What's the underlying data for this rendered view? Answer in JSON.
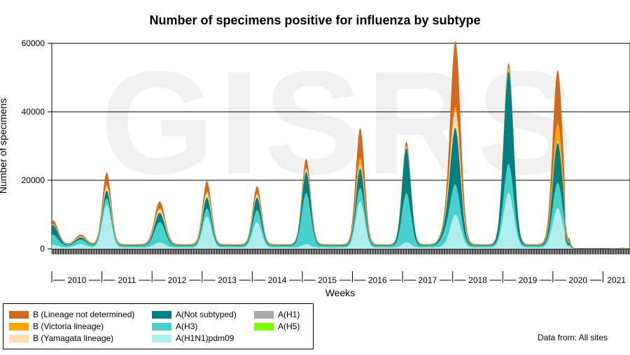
{
  "chart_data": {
    "type": "area",
    "title": "Number of specimens positive for influenza by subtype",
    "xlabel": "Weeks",
    "ylabel": "Number of specimens",
    "ylim": [
      0,
      60000
    ],
    "yticks": [
      "0",
      "20000",
      "40000",
      "60000"
    ],
    "grid": true,
    "watermark": "GISRS",
    "year_labels": [
      "2010",
      "2011",
      "2012",
      "2013",
      "2014",
      "2015",
      "2016",
      "2017",
      "2018",
      "2019",
      "2020",
      "2021"
    ],
    "legend_position": "bottom-left",
    "source_note": "Data from: All sites",
    "series": [
      {
        "name": "A(H1N1)pdm09",
        "color": "#b0eeee"
      },
      {
        "name": "A(H3)",
        "color": "#48d1cc"
      },
      {
        "name": "A(Not subtyped)",
        "color": "#008080"
      },
      {
        "name": "A(H1)",
        "color": "#a9a9a9"
      },
      {
        "name": "A(H5)",
        "color": "#7cfc00"
      },
      {
        "name": "B (Yamagata lineage)",
        "color": "#ffdead"
      },
      {
        "name": "B (Victoria lineage)",
        "color": "#ffa500"
      },
      {
        "name": "B (Lineage not determined)",
        "color": "#d2691e"
      }
    ],
    "seasonal_peaks": [
      {
        "year": "2010",
        "week": 1,
        "total": 7000,
        "split": [
          800,
          2500,
          2600,
          0,
          0,
          100,
          100,
          900
        ]
      },
      {
        "year": "2010",
        "week": 30,
        "total": 2800,
        "split": [
          1000,
          900,
          400,
          0,
          0,
          100,
          100,
          300
        ]
      },
      {
        "year": "2011",
        "week": 5,
        "total": 21000,
        "split": [
          12500,
          1500,
          2000,
          0,
          0,
          1000,
          500,
          3500
        ]
      },
      {
        "year": "2012",
        "week": 8,
        "total": 12500,
        "split": [
          1500,
          5500,
          2500,
          0,
          0,
          800,
          500,
          1700
        ]
      },
      {
        "year": "2013",
        "week": 5,
        "total": 18500,
        "split": [
          9000,
          2000,
          3000,
          0,
          0,
          1200,
          400,
          2900
        ]
      },
      {
        "year": "2014",
        "week": 5,
        "total": 17000,
        "split": [
          7500,
          3000,
          3500,
          0,
          0,
          700,
          300,
          2000
        ]
      },
      {
        "year": "2015",
        "week": 4,
        "total": 25000,
        "split": [
          1000,
          14500,
          6000,
          0,
          0,
          800,
          200,
          2500
        ]
      },
      {
        "year": "2016",
        "week": 8,
        "total": 34000,
        "split": [
          13500,
          3500,
          5500,
          0,
          0,
          1000,
          2000,
          8500
        ]
      },
      {
        "year": "2017",
        "week": 4,
        "total": 30000,
        "split": [
          1500,
          14000,
          13000,
          0,
          0,
          300,
          200,
          1000
        ]
      },
      {
        "year": "2017",
        "week": 46,
        "total": 5500,
        "split": [
          500,
          3000,
          1500,
          0,
          0,
          100,
          100,
          300
        ]
      },
      {
        "year": "2018",
        "week": 3,
        "total": 58000,
        "split": [
          9500,
          7500,
          16000,
          0,
          0,
          4500,
          1500,
          19000
        ]
      },
      {
        "year": "2019",
        "week": 6,
        "total": 53000,
        "split": [
          16000,
          8000,
          27000,
          0,
          0,
          300,
          600,
          1100
        ]
      },
      {
        "year": "2020",
        "week": 5,
        "total": 51000,
        "split": [
          11500,
          7000,
          11500,
          0,
          0,
          500,
          5000,
          15500
        ]
      },
      {
        "year": "2021",
        "week": 20,
        "total": 300,
        "split": [
          50,
          50,
          50,
          0,
          0,
          0,
          50,
          100
        ]
      }
    ]
  }
}
